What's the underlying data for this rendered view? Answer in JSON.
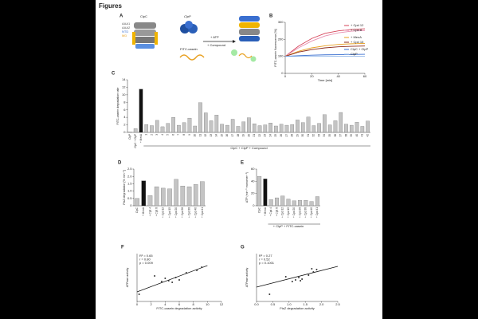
{
  "page_title": "Figures",
  "diagram": {
    "panel": "A",
    "labels": [
      "ClpC",
      "ClpP",
      "AAA1",
      "AAA2",
      "NTD",
      "MD",
      "FITC-casein",
      "+ ATP",
      "+ Compound"
    ]
  },
  "chart_data": [
    {
      "type": "line",
      "panel": "B",
      "xlabel": "Time [min]",
      "ylabel": "FITC-casein fluorescence [%]",
      "x": [
        0,
        10,
        20,
        30,
        40,
        50,
        60
      ],
      "xlim": [
        0,
        60
      ],
      "xticks": [
        0,
        20,
        40,
        60
      ],
      "ylim": [
        0,
        300
      ],
      "yticks": [
        0,
        100,
        200,
        300
      ],
      "series": [
        {
          "name": "+ Cpd 12",
          "color": "#d6455a",
          "values": [
            100,
            160,
            205,
            235,
            250,
            258,
            262
          ]
        },
        {
          "name": "+ Cpd 8",
          "color": "#e88fb0",
          "values": [
            100,
            150,
            190,
            220,
            238,
            248,
            252
          ]
        },
        {
          "name": "+ MeoA",
          "color": "#e8a020",
          "values": [
            100,
            130,
            150,
            162,
            170,
            174,
            176
          ]
        },
        {
          "name": "+ Cpd 15",
          "color": "#8b2a1a",
          "values": [
            100,
            125,
            140,
            150,
            156,
            159,
            161
          ]
        },
        {
          "name": "ClpC + ClpP",
          "color": "#3a6fd0",
          "values": [
            100,
            104,
            107,
            109,
            110,
            111,
            112
          ]
        },
        {
          "name": "ClpP",
          "color": "#8fb5e8",
          "values": [
            100,
            100,
            100,
            100,
            101,
            101,
            101
          ]
        }
      ]
    },
    {
      "type": "bar",
      "panel": "C",
      "ylabel": "FITC-casein degradation rate",
      "xlabel": "ClpC + ClpP + Compound",
      "categories": [
        "ClpP",
        "ClpC + ClpP",
        "+ MeoA",
        "1",
        "2",
        "3",
        "4",
        "5",
        "6",
        "7",
        "8",
        "9",
        "10",
        "11",
        "12",
        "13",
        "14",
        "15",
        "16",
        "17",
        "18",
        "19",
        "20",
        "21",
        "22",
        "23",
        "24",
        "25",
        "26",
        "27",
        "28",
        "29",
        "30",
        "31",
        "32",
        "33",
        "34",
        "35",
        "36",
        "37",
        "38",
        "39",
        "40",
        "41",
        "42"
      ],
      "values": [
        0.1,
        1,
        11.5,
        2.1,
        1.8,
        3.2,
        1.5,
        2.4,
        4.0,
        1.9,
        2.6,
        3.8,
        1.7,
        7.9,
        5.2,
        3.1,
        4.6,
        2.2,
        1.9,
        3.5,
        1.6,
        2.8,
        3.9,
        2.3,
        1.8,
        2.0,
        2.5,
        1.7,
        2.2,
        1.9,
        2.1,
        3.3,
        2.6,
        4.1,
        1.8,
        2.4,
        4.7,
        2.0,
        3.1,
        5.3,
        2.2,
        1.9,
        2.7,
        1.6,
        3.0
      ],
      "color": "#c4c4c4",
      "highlight": "+ MeoA",
      "highlight_color": "#111111",
      "ylim": [
        0,
        14
      ],
      "yticks": [
        0,
        2,
        4,
        6,
        8,
        10,
        12,
        14
      ]
    },
    {
      "type": "bar",
      "panel": "D",
      "ylabel": "FtsZ degradation [% min⁻¹]",
      "categories": [
        "ClpC",
        "+ MeoA",
        "+ Cpd 4",
        "+ Cpd 8",
        "+ Cpd 12",
        "+ Cpd 15",
        "+ Cpd 20",
        "+ Cpd 28",
        "+ Cpd 38",
        "+ Cpd 40",
        "+ Cpd 41"
      ],
      "values": [
        0.5,
        1.7,
        0.7,
        1.3,
        1.2,
        1.15,
        1.8,
        1.35,
        1.3,
        1.45,
        1.65
      ],
      "color": "#c4c4c4",
      "highlight": "+ MeoA",
      "highlight_color": "#111111",
      "ylim": [
        0,
        2.5
      ],
      "yticks": [
        0,
        0.5,
        {
          "value": 1,
          "label": "1.0"
        },
        1.5,
        {
          "value": 2,
          "label": "2.0"
        },
        2.5
      ]
    },
    {
      "type": "bar",
      "panel": "E",
      "ylabel": "ATP (min⁻¹ monomer⁻¹)",
      "xlabel": "+ ClpP + FITC-casein",
      "categories": [
        "ClpC",
        "+ MeoA",
        "+ Cpd 4",
        "+ Cpd 8",
        "+ Cpd 12",
        "+ Cpd 15",
        "+ Cpd 20",
        "+ Cpd 28",
        "+ Cpd 38",
        "+ Cpd 40",
        "+ Cpd 41"
      ],
      "values": [
        48,
        44,
        10,
        13,
        16,
        11,
        8,
        9,
        9,
        7,
        15
      ],
      "color": "#c4c4c4",
      "highlight": "+ MeoA",
      "highlight_color": "#111111",
      "ylim": [
        0,
        60
      ],
      "yticks": [
        0,
        20,
        40,
        60
      ]
    },
    {
      "type": "scatter",
      "panel": "F",
      "xlabel": "FITC-casein degradation activity",
      "ylabel": "ATPase activity",
      "stats": [
        "R² = 0.65",
        "r = 0.80",
        "p = 0.009"
      ],
      "x": [
        0.3,
        2.5,
        3.5,
        4,
        4.5,
        5,
        5.5,
        6,
        7,
        8.5,
        9.2
      ],
      "values": [
        0.9,
        3.2,
        2.5,
        2.9,
        2.6,
        2.4,
        3.0,
        2.7,
        3.6,
        3.9,
        4.3
      ],
      "fit": {
        "x": [
          0,
          10
        ],
        "y": [
          1.2,
          4.5
        ]
      },
      "color": "#333333",
      "xlim": [
        0,
        12
      ],
      "xticks": [
        0,
        2,
        4,
        6,
        8,
        10,
        12
      ],
      "ylim": [
        0,
        6
      ]
    },
    {
      "type": "scatter",
      "panel": "G",
      "xlabel": "FtsZ degradation activity",
      "ylabel": "ATPase activity",
      "stats": [
        "R² = 0.27",
        "r = 0.52",
        "p = 0.1001"
      ],
      "x": [
        0.4,
        0.9,
        1.1,
        1.2,
        1.3,
        1.35,
        1.4,
        1.6,
        1.7,
        1.75,
        1.85
      ],
      "values": [
        0.9,
        3.1,
        2.5,
        2.7,
        3.0,
        2.6,
        2.8,
        3.3,
        4.1,
        3.7,
        4.0
      ],
      "fit": {
        "x": [
          0,
          2.5
        ],
        "y": [
          1.8,
          4.4
        ]
      },
      "color": "#333333",
      "xlim": [
        0,
        2.5
      ],
      "xticks": [
        {
          "value": 0,
          "label": "0.0"
        },
        0.5,
        {
          "value": 1,
          "label": "1.0"
        },
        1.5,
        {
          "value": 2,
          "label": "2.0"
        },
        2.5
      ],
      "ylim": [
        0,
        6
      ]
    }
  ]
}
